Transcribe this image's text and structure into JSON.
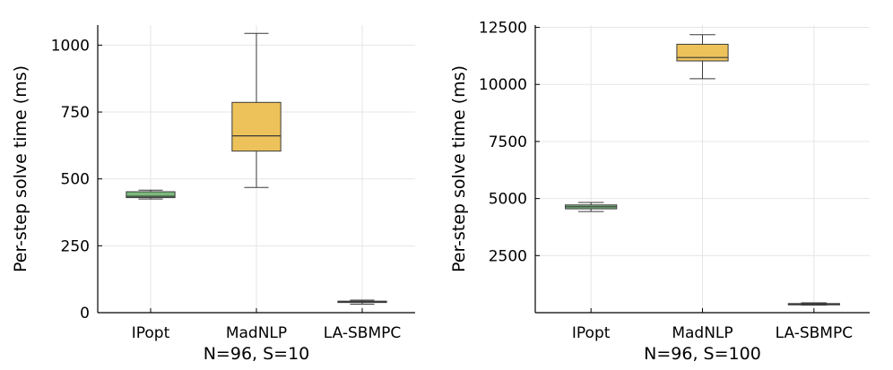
{
  "chart_data": [
    {
      "type": "box",
      "xlabel": "N=96, S=10",
      "ylabel": "Per-step solve time (ms)",
      "categories": [
        "IPopt",
        "MadNLP",
        "LA-SBMPC"
      ],
      "ylim": [
        0,
        1075
      ],
      "yticks": [
        0,
        250,
        500,
        750,
        1000
      ],
      "grid": true,
      "boxes": [
        {
          "category": "IPopt",
          "min": 425,
          "q1": 430,
          "median": 435,
          "q3": 452,
          "max": 458,
          "color": "#6db36f"
        },
        {
          "category": "MadNLP",
          "min": 468,
          "q1": 604,
          "median": 661,
          "q3": 786,
          "max": 1044,
          "color": "#ebbb48"
        },
        {
          "category": "LA-SBMPC",
          "min": 32,
          "q1": 39,
          "median": 41,
          "q3": 43,
          "max": 47,
          "color": "#d24d3e"
        }
      ]
    },
    {
      "type": "box",
      "xlabel": "N=96, S=100",
      "ylabel": "Per-step solve time (ms)",
      "categories": [
        "IPopt",
        "MadNLP",
        "LA-SBMPC"
      ],
      "ylim": [
        0,
        12600
      ],
      "yticks": [
        2500,
        5000,
        7500,
        10000,
        12500
      ],
      "grid": true,
      "boxes": [
        {
          "category": "IPopt",
          "min": 4430,
          "q1": 4550,
          "median": 4640,
          "q3": 4720,
          "max": 4830,
          "color": "#6db36f"
        },
        {
          "category": "MadNLP",
          "min": 10250,
          "q1": 11030,
          "median": 11180,
          "q3": 11760,
          "max": 12180,
          "color": "#ebbb48"
        },
        {
          "category": "LA-SBMPC",
          "min": 330,
          "q1": 360,
          "median": 380,
          "q3": 400,
          "max": 430,
          "color": "#d24d3e"
        }
      ]
    }
  ]
}
